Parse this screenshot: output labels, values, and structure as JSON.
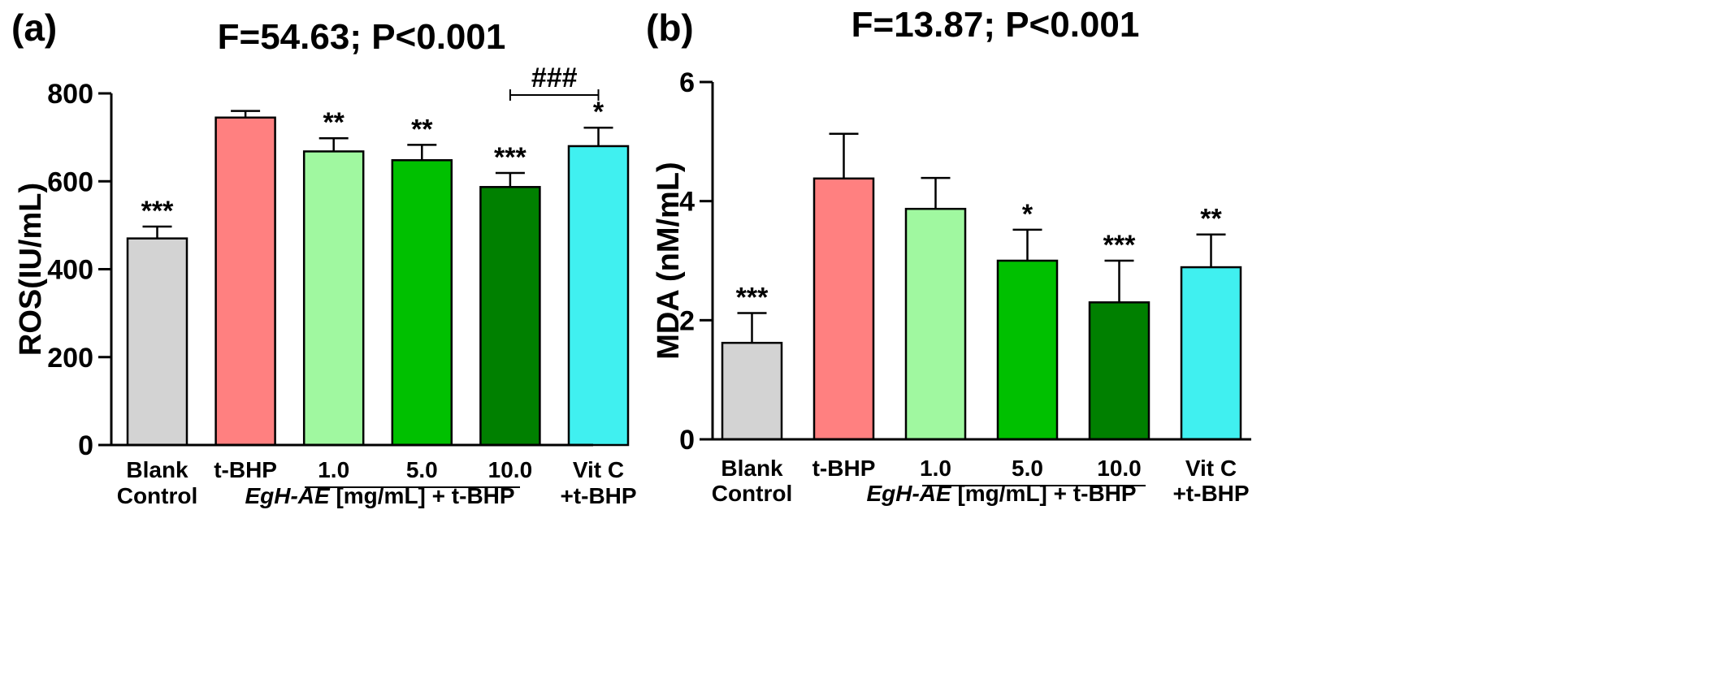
{
  "chart_data": [
    {
      "type": "bar",
      "panel_label": "(a)",
      "title": "F=54.63; P<0.001",
      "ylabel": "ROS(IU/mL)",
      "xlabel": "",
      "ylim": [
        0,
        800
      ],
      "yticks": [
        "0",
        "200",
        "400",
        "600",
        "800"
      ],
      "categories": [
        [
          "Blank",
          "Control"
        ],
        [
          "t-BHP"
        ],
        [
          "1.0"
        ],
        [
          "5.0"
        ],
        [
          "10.0"
        ],
        [
          "Vit C",
          "+t-BHP"
        ]
      ],
      "values": [
        470,
        745,
        668,
        648,
        587,
        680
      ],
      "errors": [
        27,
        15,
        30,
        35,
        32,
        42
      ],
      "significance": [
        "***",
        "",
        "**",
        "**",
        "***",
        "*"
      ],
      "colors": [
        "#d3d3d3",
        "#ff8080",
        "#a0f8a0",
        "#00c000",
        "#008000",
        "#40f0f0"
      ],
      "group_label": {
        "italic": "EgH-AE",
        "rest": " [mg/mL] + t-BHP"
      },
      "comparison": {
        "label": "###",
        "from": 4,
        "to": 5
      }
    },
    {
      "type": "bar",
      "panel_label": "(b)",
      "title": "F=13.87; P<0.001",
      "ylabel": "MDA (nM/mL)",
      "xlabel": "",
      "ylim": [
        0,
        6
      ],
      "yticks": [
        "0",
        "2",
        "4",
        "6"
      ],
      "categories": [
        [
          "Blank",
          "Control"
        ],
        [
          "t-BHP"
        ],
        [
          "1.0"
        ],
        [
          "5.0"
        ],
        [
          "10.0"
        ],
        [
          "Vit C",
          "+t-BHP"
        ]
      ],
      "values": [
        1.62,
        4.38,
        3.87,
        3.0,
        2.3,
        2.89
      ],
      "errors": [
        0.5,
        0.75,
        0.52,
        0.52,
        0.7,
        0.55
      ],
      "significance": [
        "***",
        "",
        "",
        "*",
        "***",
        "**"
      ],
      "colors": [
        "#d3d3d3",
        "#ff8080",
        "#a0f8a0",
        "#00c000",
        "#008000",
        "#40f0f0"
      ],
      "group_label": {
        "italic": "EgH-AE",
        "rest": " [mg/mL] + t-BHP"
      },
      "comparison": null
    }
  ]
}
